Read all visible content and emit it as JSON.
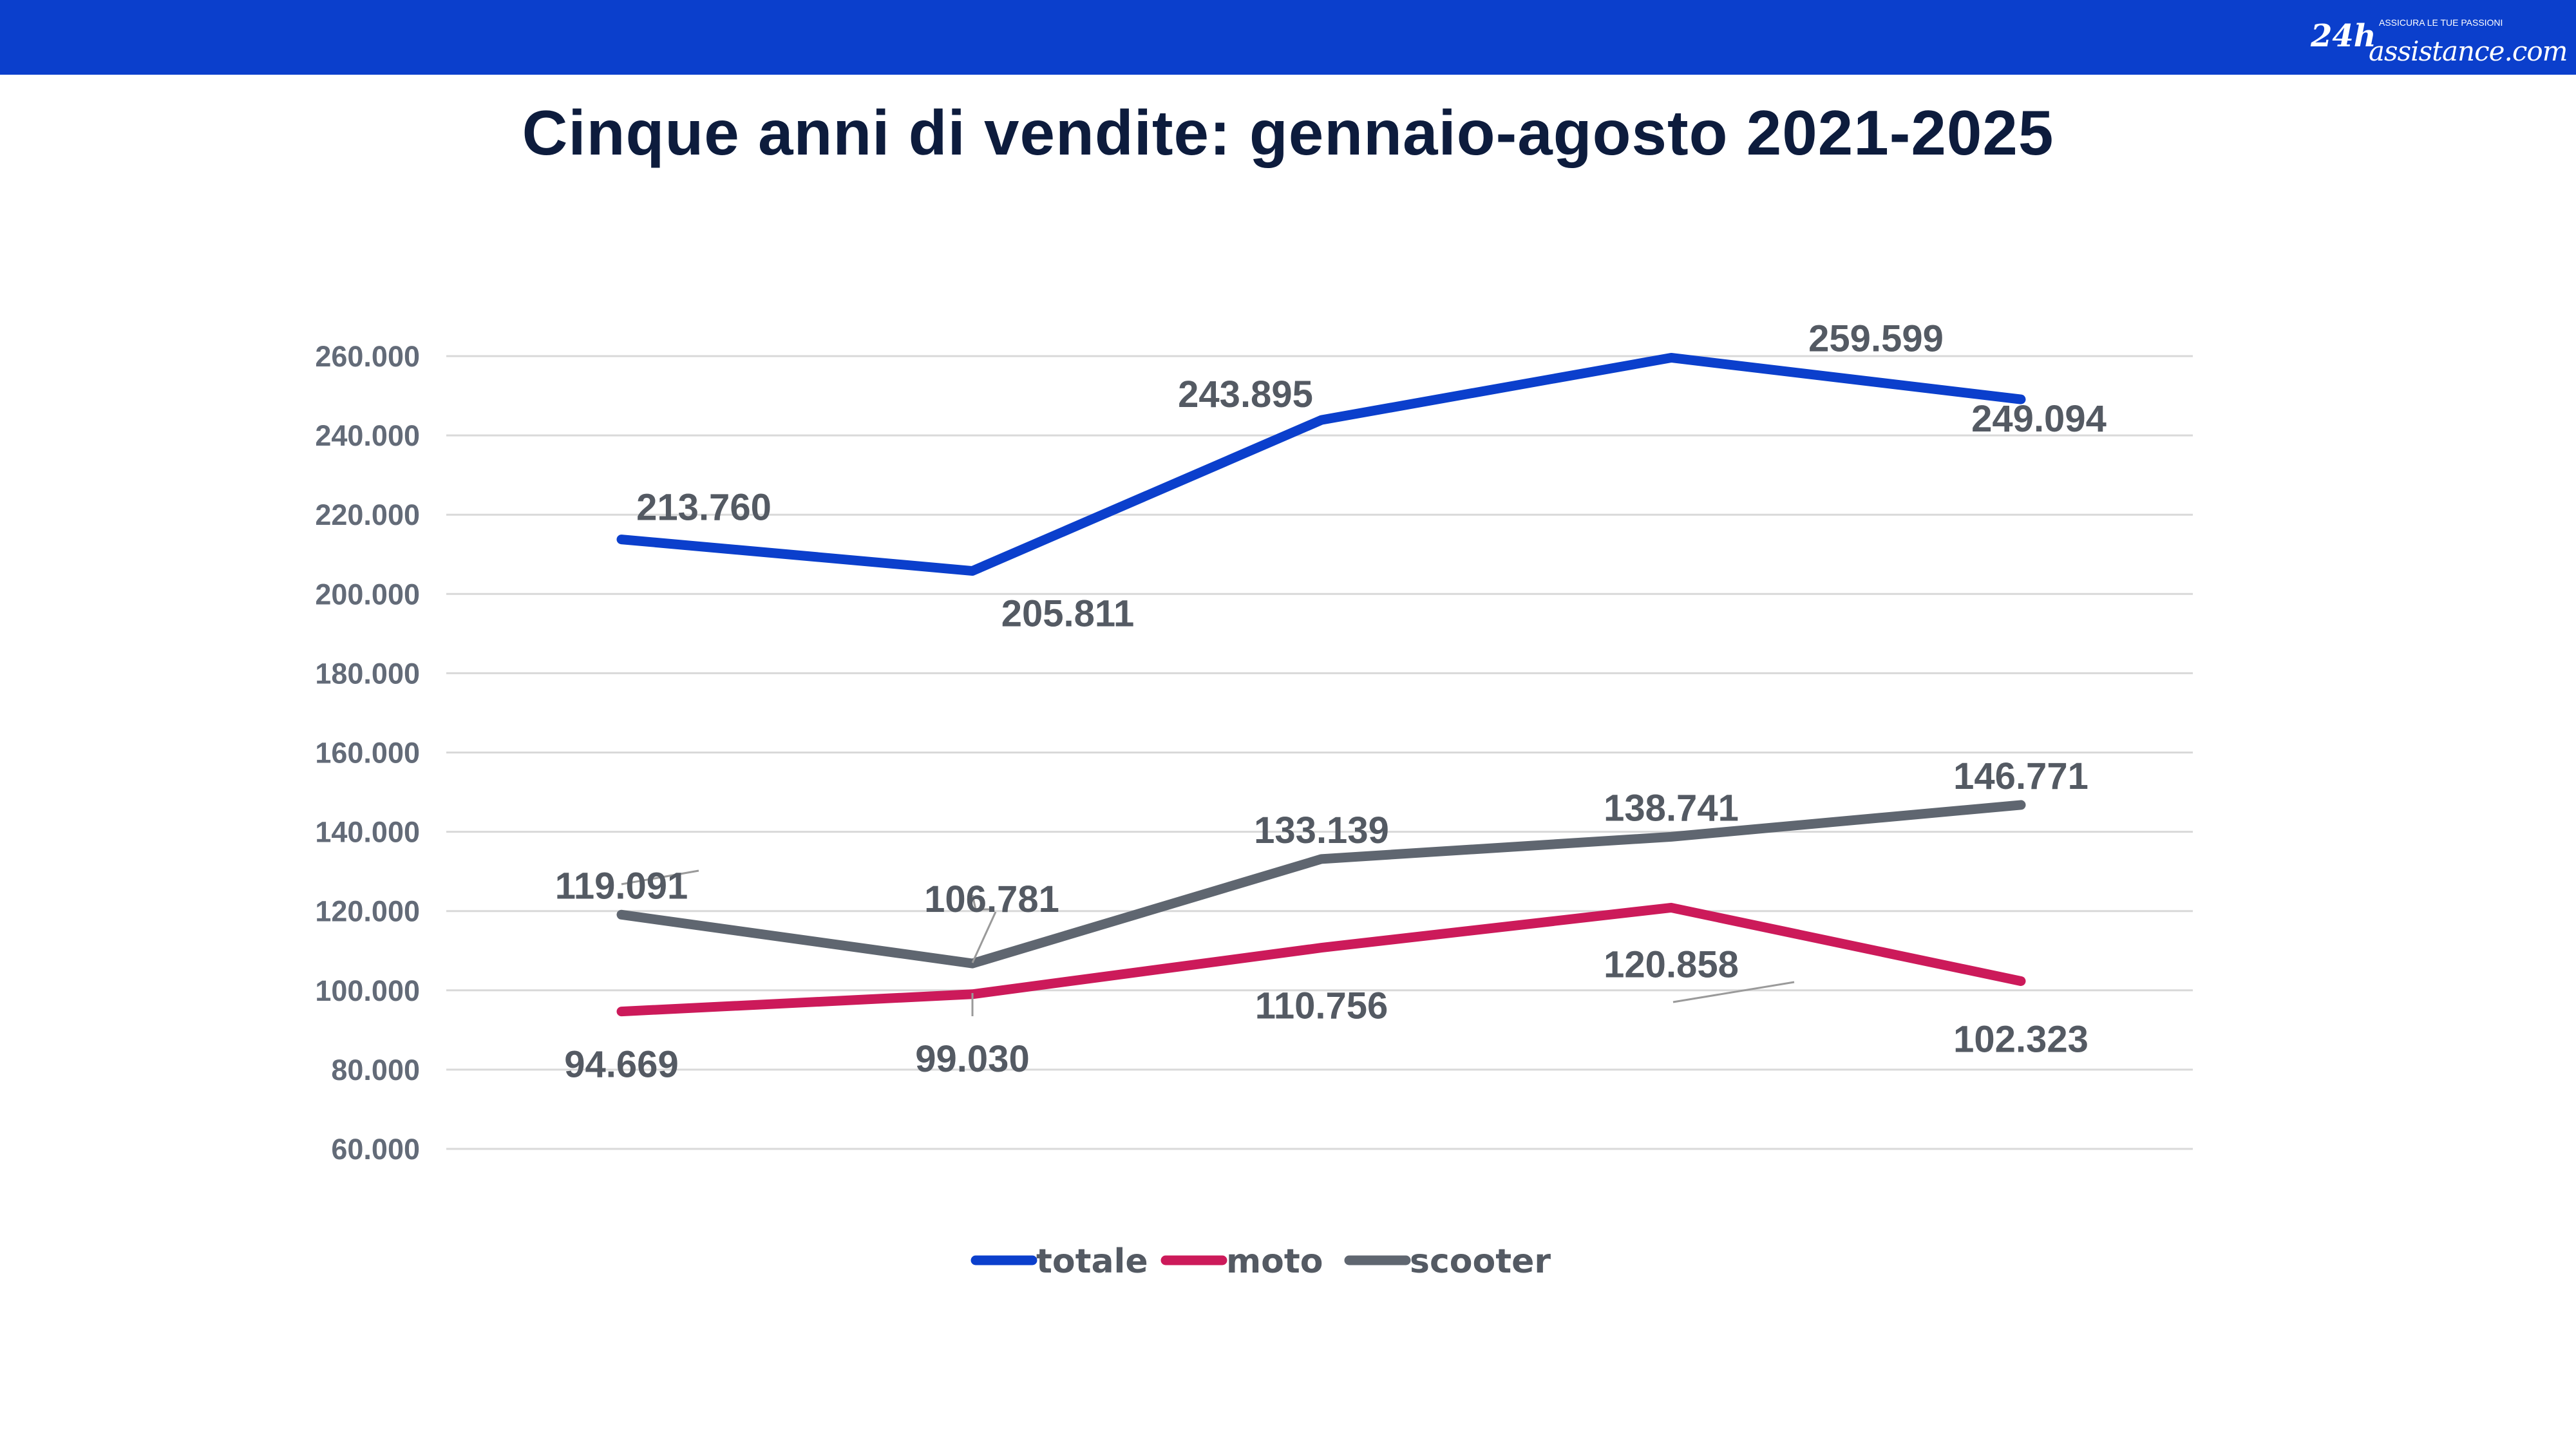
{
  "header": {
    "logo_text": "24h assistance.com",
    "logo_tagline": "ASSICURA LE TUE PASSIONI",
    "bar_color": "#0b3fcc"
  },
  "chart_data": {
    "type": "line",
    "title": "Cinque anni di vendite: gennaio-agosto 2021-2025",
    "xlabel": "",
    "ylabel": "",
    "categories": [
      "",
      "",
      "",
      "",
      ""
    ],
    "ylim": [
      60000,
      260000
    ],
    "yticks": [
      "60.000",
      "80.000",
      "100.000",
      "120.000",
      "140.000",
      "160.000",
      "180.000",
      "200.000",
      "220.000",
      "240.000",
      "260.000"
    ],
    "grid": true,
    "legend_position": "bottom",
    "series": [
      {
        "name": "totale",
        "color": "#0b3fcc",
        "values": [
          213760,
          205811,
          243895,
          259599,
          249094
        ],
        "labels": [
          "213.760",
          "205.811",
          "243.895",
          "259.599",
          "249.094"
        ]
      },
      {
        "name": "moto",
        "color": "#cc1a5a",
        "values": [
          94669,
          99030,
          110756,
          120858,
          102323
        ],
        "labels": [
          "94.669",
          "99.030",
          "110.756",
          "120.858",
          "102.323"
        ]
      },
      {
        "name": "scooter",
        "color": "#5f6670",
        "values": [
          119091,
          106781,
          133139,
          138741,
          146771
        ],
        "labels": [
          "119.091",
          "106.781",
          "133.139",
          "138.741",
          "146.771"
        ]
      }
    ]
  }
}
